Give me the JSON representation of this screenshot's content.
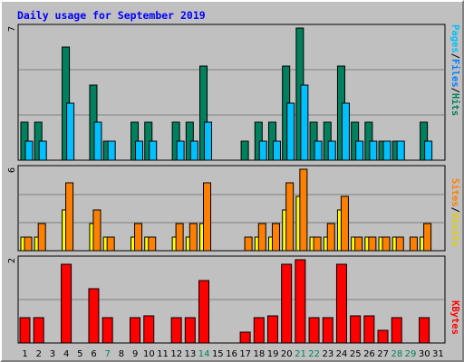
{
  "chart_data": [
    {
      "type": "bar",
      "title": "Daily usage for September 2019",
      "categories": [
        "1",
        "2",
        "3",
        "4",
        "5",
        "6",
        "7",
        "8",
        "9",
        "10",
        "11",
        "12",
        "13",
        "14",
        "15",
        "16",
        "17",
        "18",
        "19",
        "20",
        "21",
        "22",
        "23",
        "24",
        "25",
        "26",
        "27",
        "28",
        "29",
        "30",
        "31"
      ],
      "weekend_days": [
        "7",
        "14",
        "21",
        "22",
        "28",
        "29"
      ],
      "axis_labels": {
        "top": "7",
        "middle": "6",
        "bottom": "2"
      },
      "panel_titles": {
        "top": [
          "Pages",
          "/",
          "Files",
          "/",
          "Hits"
        ],
        "middle": [
          "Sites",
          "/",
          "Visits"
        ],
        "bottom": [
          "KBytes"
        ]
      },
      "panels": [
        {
          "name": "top",
          "ymax": 7,
          "series": [
            {
              "name": "Hits",
              "color": "#00805c",
              "values": [
                2,
                2,
                0,
                6,
                0,
                4,
                1,
                0,
                2,
                2,
                0,
                2,
                2,
                5,
                0,
                0,
                1,
                2,
                2,
                5,
                7,
                2,
                2,
                5,
                2,
                2,
                1,
                1,
                0,
                2,
                0
              ]
            },
            {
              "name": "Files",
              "color": "#00c0ff",
              "values": [
                1,
                1,
                0,
                3,
                0,
                2,
                1,
                0,
                1,
                1,
                0,
                1,
                1,
                2,
                0,
                0,
                0,
                1,
                1,
                3,
                4,
                1,
                1,
                3,
                1,
                1,
                1,
                1,
                0,
                1,
                0
              ]
            },
            {
              "name": "Pages",
              "color": "#0080ff",
              "values": [
                0,
                0,
                0,
                0,
                0,
                0,
                0,
                0,
                0,
                0,
                0,
                0,
                0,
                0,
                0,
                0,
                0,
                0,
                0,
                0,
                0,
                0,
                0,
                0,
                0,
                0,
                0,
                0,
                0,
                0,
                0
              ]
            }
          ]
        },
        {
          "name": "middle",
          "ymax": 6,
          "series": [
            {
              "name": "Visits",
              "color": "#ffff00",
              "values": [
                1,
                1,
                0,
                3,
                0,
                2,
                1,
                0,
                1,
                1,
                0,
                1,
                1,
                2,
                0,
                0,
                0,
                1,
                1,
                3,
                4,
                1,
                1,
                3,
                1,
                1,
                1,
                1,
                0,
                1,
                0
              ]
            },
            {
              "name": "Sites",
              "color": "#ff8000",
              "values": [
                1,
                2,
                0,
                5,
                0,
                3,
                1,
                0,
                2,
                1,
                0,
                2,
                2,
                5,
                0,
                0,
                1,
                2,
                2,
                5,
                6,
                1,
                2,
                4,
                1,
                1,
                1,
                1,
                1,
                2,
                0
              ]
            }
          ]
        },
        {
          "name": "bottom",
          "ymax": 2,
          "series": [
            {
              "name": "KBytes",
              "color": "#ff0000",
              "values": [
                0.6,
                0.6,
                0,
                1.9,
                0,
                1.3,
                0.6,
                0,
                0.6,
                0.65,
                0,
                0.6,
                0.6,
                1.5,
                0,
                0,
                0.25,
                0.6,
                0.65,
                1.9,
                2.0,
                0.6,
                0.6,
                1.9,
                0.65,
                0.65,
                0.3,
                0.6,
                0,
                0.6,
                0
              ]
            }
          ]
        }
      ]
    }
  ]
}
